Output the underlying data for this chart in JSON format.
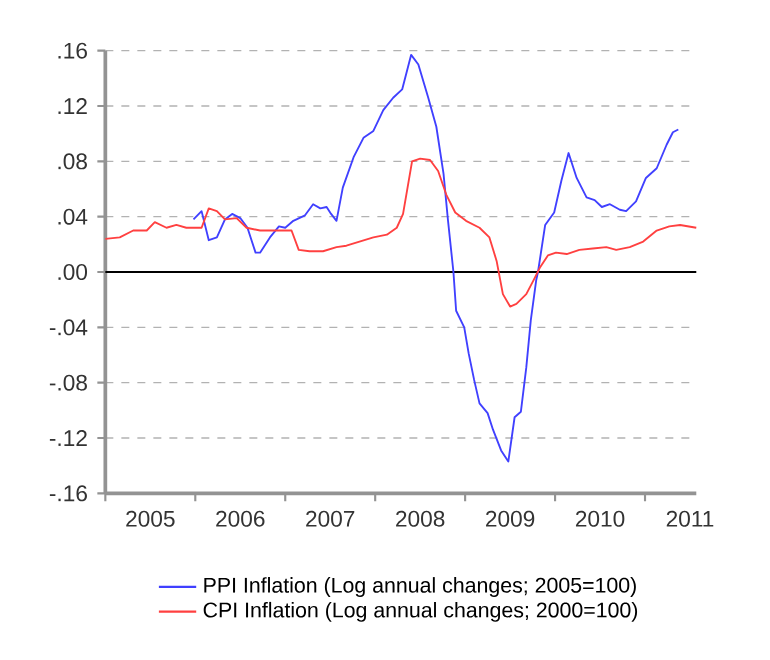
{
  "chart_data": {
    "type": "line",
    "xlim": [
      2005,
      2011.57
    ],
    "xticks": [
      {
        "value": 2005,
        "label": null
      },
      {
        "value": 2006,
        "label": null
      },
      {
        "value": 2007,
        "label": null
      },
      {
        "value": 2008,
        "label": null
      },
      {
        "value": 2009,
        "label": null
      },
      {
        "value": 2010,
        "label": null
      },
      {
        "value": 2011,
        "label": null
      },
      {
        "value": 2005.5,
        "label": "2005"
      },
      {
        "value": 2006.5,
        "label": "2006"
      },
      {
        "value": 2007.5,
        "label": "2007"
      },
      {
        "value": 2008.5,
        "label": "2008"
      },
      {
        "value": 2009.5,
        "label": "2009"
      },
      {
        "value": 2010.5,
        "label": "2010"
      },
      {
        "value": 2011.5,
        "label": "2011"
      }
    ],
    "ylim": [
      -0.16,
      0.16
    ],
    "yticks": [
      {
        "value": -0.16,
        "label": "-.16"
      },
      {
        "value": -0.12,
        "label": "-.12"
      },
      {
        "value": -0.08,
        "label": "-.08"
      },
      {
        "value": -0.04,
        "label": "-.04"
      },
      {
        "value": 0,
        "label": ".00"
      },
      {
        "value": 0.04,
        "label": ".04"
      },
      {
        "value": 0.08,
        "label": ".08"
      },
      {
        "value": 0.12,
        "label": ".12"
      },
      {
        "value": 0.16,
        "label": ".16"
      }
    ],
    "grid": "y",
    "legend": "bottom",
    "ref_lines": [
      {
        "axis": "y",
        "value": 0,
        "color": "#000000",
        "line_style": "solid"
      }
    ],
    "series": [
      {
        "name": "PPI Inflation (Log annual changes; 2005=100)",
        "color": "#4040ff",
        "x": [
          2005.98,
          2006.07,
          2006.15,
          2006.24,
          2006.33,
          2006.41,
          2006.5,
          2006.58,
          2006.67,
          2006.72,
          2006.83,
          2006.93,
          2007.0,
          2007.09,
          2007.22,
          2007.31,
          2007.39,
          2007.46,
          2007.51,
          2007.57,
          2007.64,
          2007.76,
          2007.87,
          2007.98,
          2008.09,
          2008.2,
          2008.3,
          2008.4,
          2008.48,
          2008.59,
          2008.68,
          2008.76,
          2008.81,
          2008.87,
          2008.9,
          2008.99,
          2009.04,
          2009.1,
          2009.16,
          2009.25,
          2009.31,
          2009.4,
          2009.48,
          2009.55,
          2009.62,
          2009.68,
          2009.73,
          2009.79,
          2009.81,
          2009.89,
          2009.99,
          2010.07,
          2010.15,
          2010.24,
          2010.35,
          2010.44,
          2010.52,
          2010.61,
          2010.72,
          2010.79,
          2010.9,
          2011.01,
          2011.13,
          2011.24,
          2011.31,
          2011.37
        ],
        "values": [
          0.038,
          0.044,
          0.023,
          0.025,
          0.038,
          0.042,
          0.039,
          0.032,
          0.014,
          0.014,
          0.025,
          0.033,
          0.032,
          0.037,
          0.041,
          0.049,
          0.046,
          0.047,
          0.042,
          0.037,
          0.061,
          0.083,
          0.097,
          0.102,
          0.117,
          0.126,
          0.132,
          0.157,
          0.15,
          0.126,
          0.105,
          0.071,
          0.037,
          0.0,
          -0.028,
          -0.04,
          -0.059,
          -0.078,
          -0.095,
          -0.102,
          -0.114,
          -0.129,
          -0.137,
          -0.105,
          -0.101,
          -0.069,
          -0.035,
          -0.006,
          0.0,
          0.034,
          0.043,
          0.066,
          0.086,
          0.068,
          0.054,
          0.052,
          0.047,
          0.049,
          0.045,
          0.044,
          0.051,
          0.068,
          0.075,
          0.092,
          0.101,
          0.103
        ]
      },
      {
        "name": "CPI Inflation (Log annual changes; 2000=100)",
        "color": "#ff4040",
        "x": [
          2005.0,
          2005.16,
          2005.31,
          2005.46,
          2005.55,
          2005.68,
          2005.79,
          2005.9,
          2006.07,
          2006.15,
          2006.24,
          2006.33,
          2006.46,
          2006.57,
          2006.72,
          2006.87,
          2006.98,
          2007.07,
          2007.15,
          2007.27,
          2007.42,
          2007.57,
          2007.68,
          2007.83,
          2007.98,
          2008.13,
          2008.24,
          2008.31,
          2008.41,
          2008.5,
          2008.61,
          2008.7,
          2008.79,
          2008.89,
          2009.01,
          2009.16,
          2009.27,
          2009.35,
          2009.42,
          2009.5,
          2009.57,
          2009.68,
          2009.76,
          2009.83,
          2009.92,
          2010.01,
          2010.13,
          2010.27,
          2010.42,
          2010.57,
          2010.68,
          2010.83,
          2010.98,
          2011.13,
          2011.27,
          2011.39,
          2011.57
        ],
        "values": [
          0.024,
          0.025,
          0.03,
          0.03,
          0.036,
          0.032,
          0.034,
          0.032,
          0.032,
          0.046,
          0.044,
          0.038,
          0.039,
          0.032,
          0.03,
          0.03,
          0.03,
          0.03,
          0.016,
          0.015,
          0.015,
          0.018,
          0.019,
          0.022,
          0.025,
          0.027,
          0.032,
          0.042,
          0.08,
          0.082,
          0.081,
          0.073,
          0.056,
          0.043,
          0.037,
          0.032,
          0.025,
          0.008,
          -0.016,
          -0.025,
          -0.023,
          -0.016,
          -0.006,
          0.003,
          0.012,
          0.014,
          0.013,
          0.016,
          0.017,
          0.018,
          0.016,
          0.018,
          0.022,
          0.03,
          0.033,
          0.034,
          0.032
        ]
      }
    ]
  }
}
